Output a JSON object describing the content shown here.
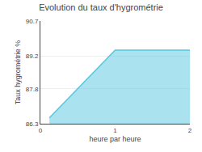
{
  "chart_data": {
    "type": "area",
    "title": "Evolution du taux d'hygrométrie",
    "xlabel": "heure par heure",
    "ylabel": "Taux hygrométrie %",
    "x": [
      0.12,
      1.0,
      2.0
    ],
    "values": [
      86.55,
      89.45,
      89.45
    ],
    "color": "#55c8e0",
    "xlim": [
      0,
      2
    ],
    "xticks": [
      0,
      1,
      2
    ],
    "ylim": [
      86.3,
      90.7
    ],
    "yticks": [
      86.3,
      87.8,
      89.2,
      90.7
    ],
    "grid": "y"
  }
}
